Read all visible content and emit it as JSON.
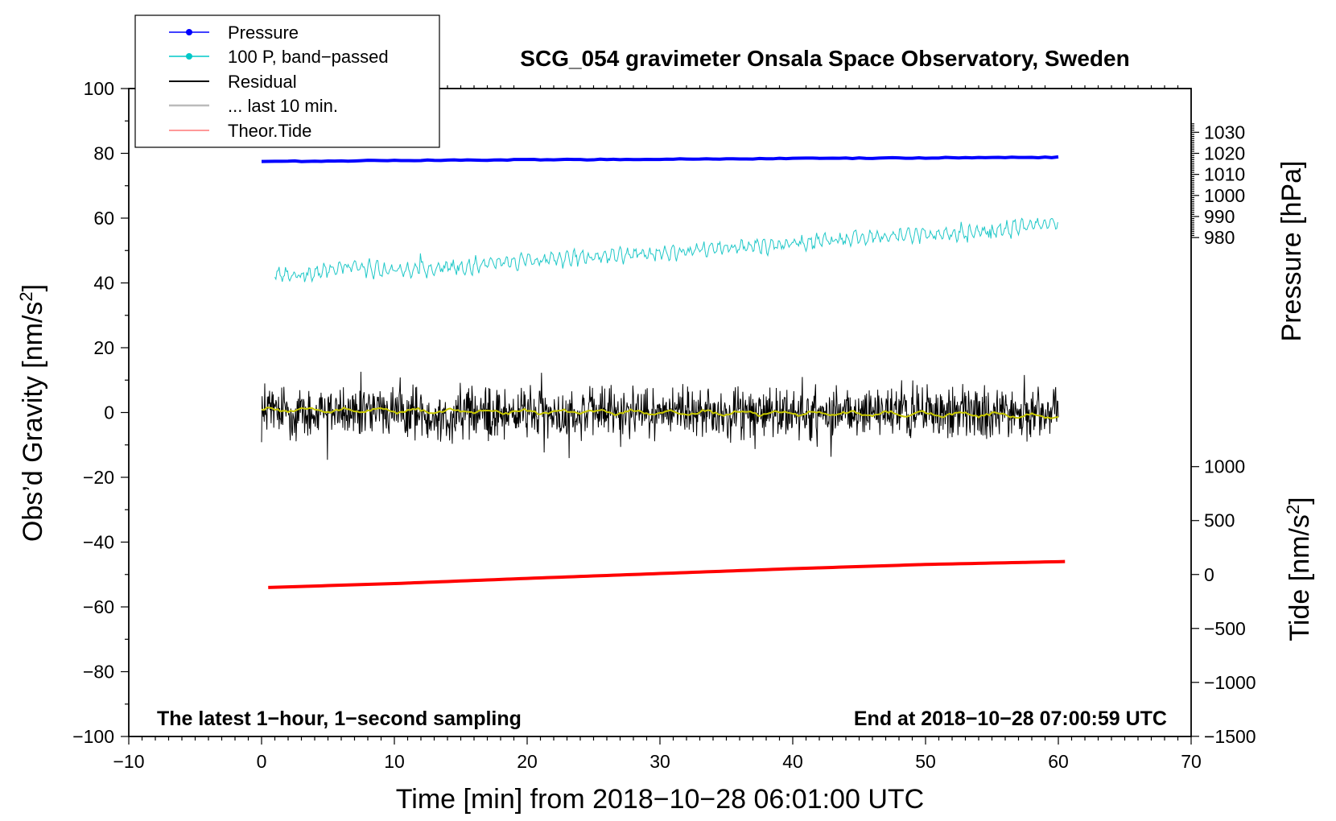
{
  "chart_data": {
    "type": "line",
    "title": "SCG_054 gravimeter Onsala Space Observatory, Sweden",
    "xlabel": "Time [min] from 2018−10−28 06:01:00 UTC",
    "ylabel_left_text": "Obs’d Gravity [nm/s",
    "ylabel_left_sup": "2",
    "ylabel_left_close": "]",
    "ylabel_right_pressure": "Pressure [hPa]",
    "ylabel_right_tide_text": "Tide [nm/s",
    "ylabel_right_tide_sup": "2",
    "ylabel_right_tide_close": "]",
    "annotation_left": "The latest 1−hour, 1−second sampling",
    "annotation_right": "End at 2018−10−28 07:00:59 UTC",
    "xlim": [
      -10,
      70
    ],
    "ylim": [
      -100,
      100
    ],
    "xticks": [
      "−10",
      "0",
      "10",
      "20",
      "30",
      "40",
      "50",
      "60",
      "70"
    ],
    "yticks_left": [
      "100",
      "80",
      "60",
      "40",
      "20",
      "0",
      "−20",
      "−40",
      "−60",
      "−80",
      "−100"
    ],
    "pressure_axis": {
      "ticks": [
        "1030",
        "1020",
        "1010",
        "1000",
        "990",
        "980"
      ],
      "values": [
        1030,
        1020,
        1010,
        1000,
        990,
        980
      ],
      "mapping": [
        1020,
        80,
        0.65
      ]
    },
    "tide_axis": {
      "ticks": [
        "1000",
        "500",
        "0",
        "−500",
        "−1000",
        "−1500"
      ],
      "values": [
        1000,
        500,
        0,
        -500,
        -1000,
        -1500
      ],
      "mapping": [
        0,
        -50,
        0.0333
      ]
    },
    "legend": [
      {
        "label": "Pressure",
        "color": "#0000ff",
        "marker": true
      },
      {
        "label": "100 P, band−passed",
        "color": "#00c8c8",
        "marker": true
      },
      {
        "label": "Residual",
        "color": "#000000",
        "marker": false
      },
      {
        "label": "... last 10 min.",
        "color": "#bbbbbb",
        "marker": false
      },
      {
        "label": "Theor.Tide",
        "color": "#ff0000",
        "marker": false
      }
    ],
    "series": [
      {
        "name": "Pressure",
        "color": "#0000ff",
        "x": [
          0,
          10,
          20,
          30,
          40,
          50,
          60
        ],
        "values": [
          77.5,
          77.8,
          78.0,
          78.2,
          78.4,
          78.6,
          78.8
        ]
      },
      {
        "name": "100 P, band−passed",
        "color": "#20c8c8",
        "x": [
          1,
          3,
          6,
          10,
          15,
          20,
          25,
          30,
          35,
          40,
          45,
          50,
          55,
          60
        ],
        "values": [
          43,
          42,
          45,
          44,
          45,
          47,
          48,
          49,
          51,
          52,
          54,
          55,
          56,
          59
        ]
      },
      {
        "name": "Residual",
        "color": "#000000",
        "x": [
          0,
          10,
          20,
          30,
          40,
          50,
          60
        ],
        "values": [
          0,
          0,
          0,
          0,
          0,
          0,
          0
        ]
      },
      {
        "name": "... last 10 min.",
        "color": "#c8c800",
        "x": [
          0,
          10,
          20,
          30,
          40,
          50,
          60
        ],
        "values": [
          0.8,
          0.5,
          0.3,
          0.0,
          -0.2,
          -0.5,
          -1.0
        ]
      },
      {
        "name": "Theor.Tide",
        "color": "#ff0000",
        "x": [
          0.5,
          10,
          20,
          30,
          40,
          50,
          60.5
        ],
        "values": [
          -54,
          -52.8,
          -51.2,
          -49.7,
          -48.2,
          -46.9,
          -46.0
        ]
      }
    ]
  }
}
